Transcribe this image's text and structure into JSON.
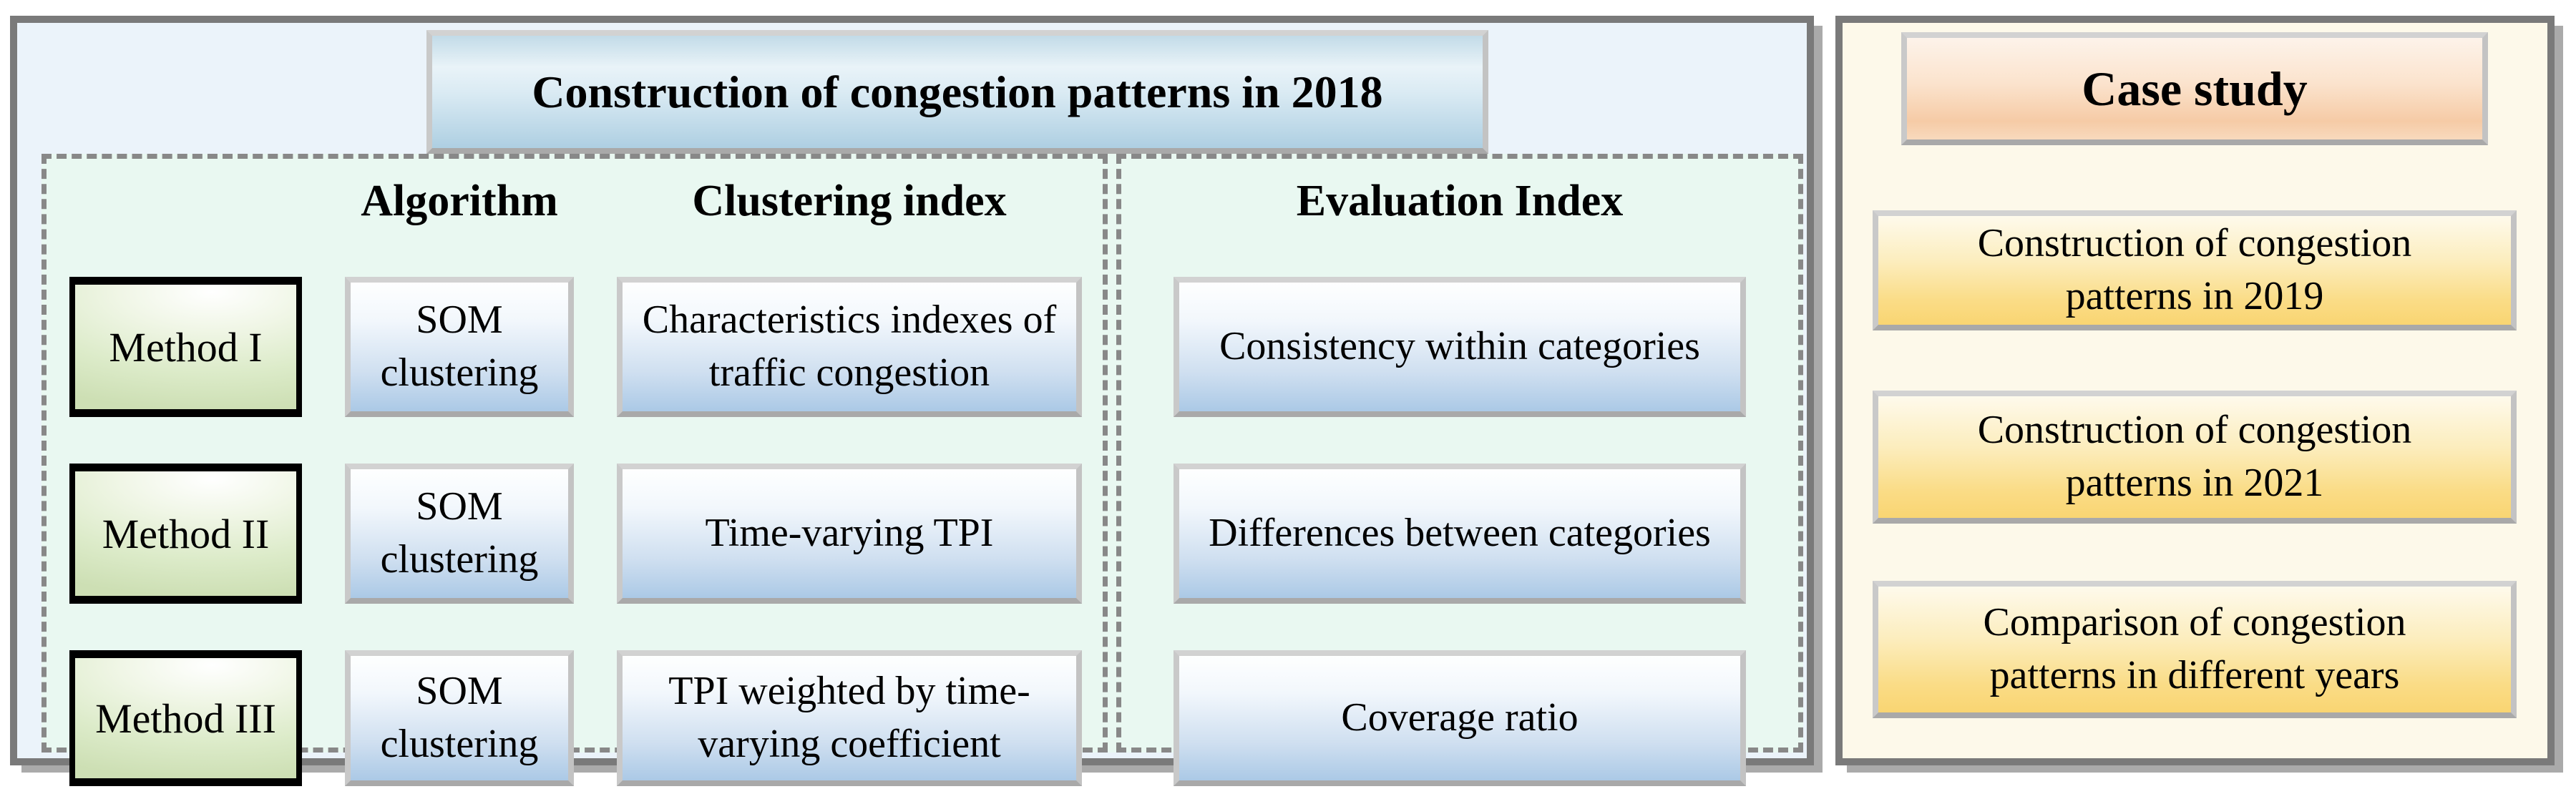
{
  "figure": {
    "left_panel": {
      "title": "Construction of congestion patterns in 2018",
      "column_headers": {
        "algorithm": "Algorithm",
        "clustering_index": "Clustering index",
        "evaluation_index": "Evaluation Index"
      },
      "rows": [
        {
          "method": "Method I",
          "algorithm": "SOM clustering",
          "clustering_index": "Characteristics indexes of traffic congestion",
          "evaluation_index": "Consistency within categories"
        },
        {
          "method": "Method II",
          "algorithm": "SOM clustering",
          "clustering_index": "Time-varying TPI",
          "evaluation_index": "Differences between categories"
        },
        {
          "method": "Method III",
          "algorithm": "SOM clustering",
          "clustering_index": "TPI weighted by time-varying coefficient",
          "evaluation_index": "Coverage ratio"
        }
      ]
    },
    "right_panel": {
      "title": "Case study",
      "items": [
        "Construction of congestion patterns in 2019",
        "Construction of congestion patterns in 2021",
        "Comparison of congestion patterns in different years"
      ]
    },
    "colors": {
      "panel_border": "#7a7a7a",
      "left_panel_bg": "#EBF3FA",
      "mint_section_bg": "#E9F8F1",
      "dashed_border": "#888888",
      "box_border_gray": "#C3C3C3",
      "title_blue_gradient_bottom": "#AECFE2",
      "method_box_green": "#D6E7C2",
      "blue_box_gradient_bottom": "#ABC9E6",
      "right_panel_bg": "#FDF9EA",
      "case_title_peach": "#F6CBA6",
      "case_item_gold": "#F9D572"
    }
  }
}
